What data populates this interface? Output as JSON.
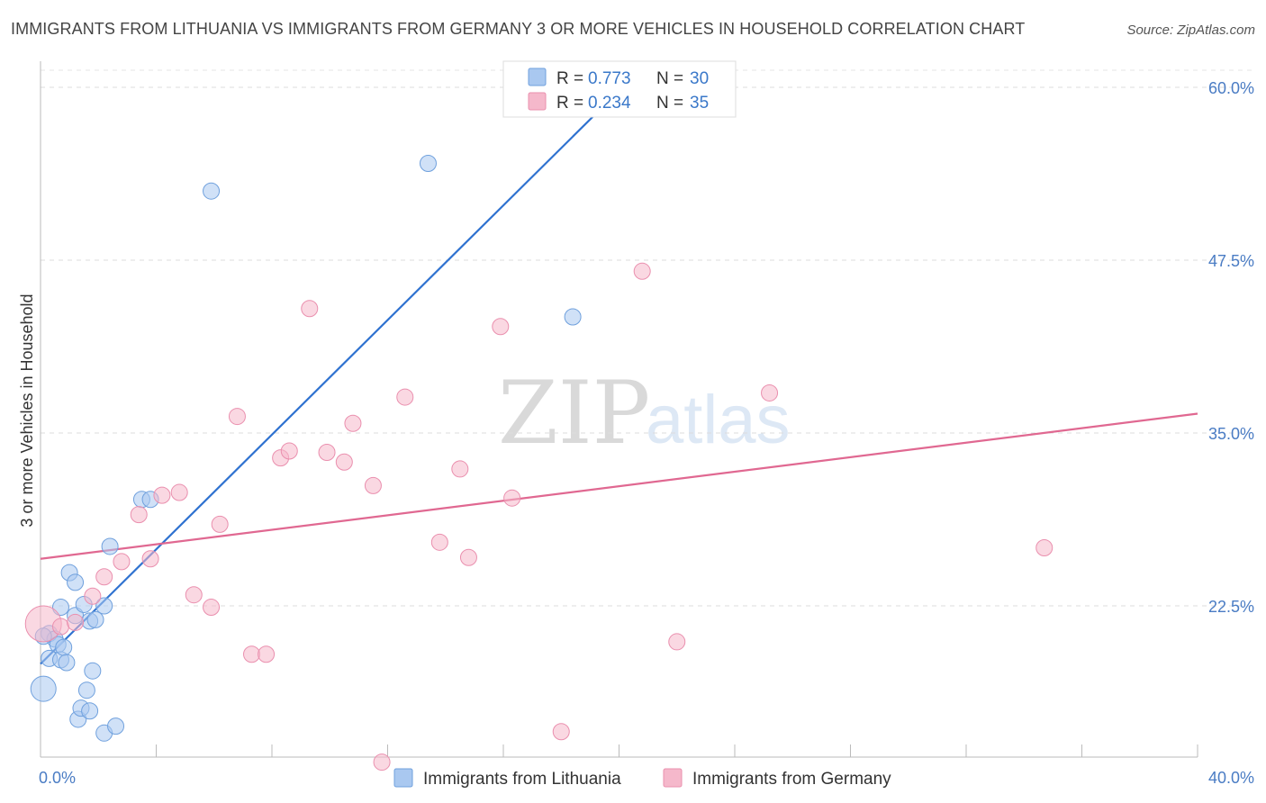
{
  "title": "IMMIGRANTS FROM LITHUANIA VS IMMIGRANTS FROM GERMANY 3 OR MORE VEHICLES IN HOUSEHOLD CORRELATION CHART",
  "source": "Source: ZipAtlas.com",
  "watermark": {
    "zip": "ZIP",
    "atlas": "atlas"
  },
  "legend_top": [
    {
      "r_label": "R =",
      "r_value": "0.773",
      "n_label": "N =",
      "n_value": "30",
      "color": "#a9c8f0"
    },
    {
      "r_label": "R =",
      "r_value": "0.234",
      "n_label": "N =",
      "n_value": "35",
      "color": "#f5b8cb"
    }
  ],
  "legend_bottom": [
    {
      "label": "Immigrants from Lithuania",
      "color": "#a9c8f0"
    },
    {
      "label": "Immigrants from Germany",
      "color": "#f5b8cb"
    }
  ],
  "chart_data": {
    "type": "scatter",
    "xlabel": "",
    "ylabel": "3 or more Vehicles in Household",
    "xlim": [
      0,
      40
    ],
    "ylim": [
      10,
      61
    ],
    "x_tick_labels": [
      {
        "value": 0,
        "label": "0.0%"
      },
      {
        "value": 40,
        "label": "40.0%"
      }
    ],
    "y_ticks": [
      {
        "value": 22.5,
        "label": "22.5%"
      },
      {
        "value": 35.0,
        "label": "35.0%"
      },
      {
        "value": 47.5,
        "label": "47.5%"
      },
      {
        "value": 60.0,
        "label": "60.0%"
      }
    ],
    "series": [
      {
        "name": "Immigrants from Lithuania",
        "color": "#a9c8f0",
        "stroke": "#6fa0dd",
        "line_color": "#2f72d0",
        "trend": {
          "x0": 0,
          "y0": 18.3,
          "x1": 19.3,
          "y1": 58.3
        },
        "points": [
          [
            0.1,
            16.5
          ],
          [
            0.3,
            18.7
          ],
          [
            0.3,
            20.5
          ],
          [
            0.5,
            20.1
          ],
          [
            0.6,
            19.7
          ],
          [
            0.7,
            18.6
          ],
          [
            0.7,
            22.4
          ],
          [
            0.8,
            19.5
          ],
          [
            0.9,
            18.4
          ],
          [
            1.0,
            24.9
          ],
          [
            1.2,
            21.8
          ],
          [
            1.2,
            24.2
          ],
          [
            1.3,
            14.3
          ],
          [
            1.4,
            15.1
          ],
          [
            1.5,
            22.6
          ],
          [
            1.6,
            16.4
          ],
          [
            1.7,
            14.9
          ],
          [
            1.7,
            21.4
          ],
          [
            1.8,
            17.8
          ],
          [
            1.9,
            21.5
          ],
          [
            2.2,
            13.3
          ],
          [
            2.2,
            22.5
          ],
          [
            2.4,
            26.8
          ],
          [
            2.6,
            13.8
          ],
          [
            3.5,
            30.2
          ],
          [
            3.8,
            30.2
          ],
          [
            5.9,
            52.5
          ],
          [
            13.4,
            54.5
          ],
          [
            18.4,
            43.4
          ],
          [
            0.1,
            20.3
          ]
        ],
        "sizes": [
          14,
          9,
          9,
          9,
          9,
          9,
          9,
          9,
          9,
          9,
          9,
          9,
          9,
          9,
          9,
          9,
          9,
          9,
          9,
          9,
          9,
          9,
          9,
          9,
          9,
          9,
          9,
          9,
          9,
          9
        ]
      },
      {
        "name": "Immigrants from Germany",
        "color": "#f5b8cb",
        "stroke": "#ea8fae",
        "line_color": "#e06891",
        "trend": {
          "x0": 0,
          "y0": 25.9,
          "x1": 40,
          "y1": 36.4
        },
        "points": [
          [
            0.1,
            21.2
          ],
          [
            0.7,
            21.0
          ],
          [
            1.2,
            21.3
          ],
          [
            1.8,
            23.2
          ],
          [
            2.2,
            24.6
          ],
          [
            2.8,
            25.7
          ],
          [
            3.4,
            29.1
          ],
          [
            3.8,
            25.9
          ],
          [
            4.2,
            30.5
          ],
          [
            4.8,
            30.7
          ],
          [
            5.3,
            23.3
          ],
          [
            5.9,
            22.4
          ],
          [
            6.2,
            28.4
          ],
          [
            6.8,
            36.2
          ],
          [
            7.3,
            19.0
          ],
          [
            7.8,
            19.0
          ],
          [
            8.3,
            33.2
          ],
          [
            8.6,
            33.7
          ],
          [
            9.3,
            44.0
          ],
          [
            9.9,
            33.6
          ],
          [
            10.5,
            32.9
          ],
          [
            10.8,
            35.7
          ],
          [
            11.5,
            31.2
          ],
          [
            11.8,
            11.2
          ],
          [
            12.6,
            37.6
          ],
          [
            13.8,
            27.1
          ],
          [
            14.5,
            32.4
          ],
          [
            14.8,
            26.0
          ],
          [
            15.9,
            42.7
          ],
          [
            16.3,
            30.3
          ],
          [
            18.0,
            13.4
          ],
          [
            20.8,
            46.7
          ],
          [
            22.0,
            19.9
          ],
          [
            25.2,
            37.9
          ],
          [
            34.7,
            26.7
          ]
        ],
        "sizes": [
          20,
          9,
          9,
          9,
          9,
          9,
          9,
          9,
          9,
          9,
          9,
          9,
          9,
          9,
          9,
          9,
          9,
          9,
          9,
          9,
          9,
          9,
          9,
          9,
          9,
          9,
          9,
          9,
          9,
          9,
          9,
          9,
          9,
          9,
          9
        ]
      }
    ]
  }
}
